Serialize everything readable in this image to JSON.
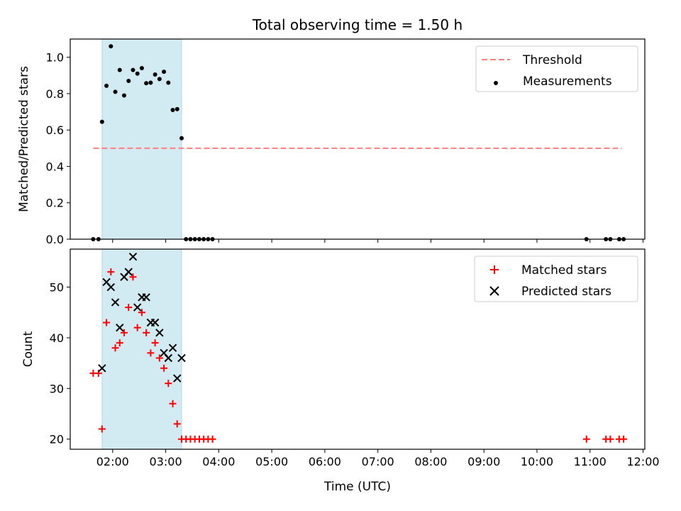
{
  "chart_data": [
    {
      "type": "scatter",
      "title": "Total observing time = 1.50 h",
      "xlabel": "",
      "ylabel": "Matched/Predicted stars",
      "xlim": [
        "01:12",
        "12:02"
      ],
      "ylim": [
        0,
        1.1
      ],
      "x_ticks": [
        "02:00",
        "03:00",
        "04:00",
        "05:00",
        "06:00",
        "07:00",
        "08:00",
        "09:00",
        "10:00",
        "11:00",
        "12:00"
      ],
      "y_ticks": [
        "0.0",
        "0.2",
        "0.4",
        "0.6",
        "0.8",
        "1.0"
      ],
      "shaded_region": {
        "x": [
          "01:48",
          "03:18"
        ],
        "color": "#add8e6"
      },
      "grid": false,
      "legend": {
        "position": "top-right",
        "entries": [
          "Threshold",
          "Measurements"
        ]
      },
      "series": [
        {
          "name": "Threshold",
          "style": "dashed-line",
          "color": "#ff7f7f",
          "points": [
            [
              "01:38",
              0.5
            ],
            [
              "11:36",
              0.5
            ]
          ]
        },
        {
          "name": "Measurements",
          "style": "dot",
          "color": "#000000",
          "points": [
            [
              "01:38",
              0.0
            ],
            [
              "01:44",
              0.0
            ],
            [
              "01:48",
              0.645
            ],
            [
              "01:53",
              0.843
            ],
            [
              "01:58",
              1.06
            ],
            [
              "02:03",
              0.81
            ],
            [
              "02:08",
              0.93
            ],
            [
              "02:13",
              0.79
            ],
            [
              "02:18",
              0.87
            ],
            [
              "02:23",
              0.93
            ],
            [
              "02:28",
              0.91
            ],
            [
              "02:33",
              0.94
            ],
            [
              "02:38",
              0.857
            ],
            [
              "02:43",
              0.86
            ],
            [
              "02:48",
              0.905
            ],
            [
              "02:53",
              0.88
            ],
            [
              "02:58",
              0.92
            ],
            [
              "03:03",
              0.86
            ],
            [
              "03:08",
              0.71
            ],
            [
              "03:13",
              0.715
            ],
            [
              "03:18",
              0.555
            ],
            [
              "03:23",
              0.0
            ],
            [
              "03:28",
              0.0
            ],
            [
              "03:33",
              0.0
            ],
            [
              "03:38",
              0.0
            ],
            [
              "03:43",
              0.0
            ],
            [
              "03:48",
              0.0
            ],
            [
              "03:53",
              0.0
            ],
            [
              "10:56",
              0.0
            ],
            [
              "11:18",
              0.0
            ],
            [
              "11:23",
              0.0
            ],
            [
              "11:33",
              0.0
            ],
            [
              "11:38",
              0.0
            ]
          ]
        }
      ]
    },
    {
      "type": "scatter",
      "title": "",
      "xlabel": "Time (UTC)",
      "ylabel": "Count",
      "xlim": [
        "01:12",
        "12:02"
      ],
      "ylim": [
        18,
        57.5
      ],
      "x_ticks": [
        "02:00",
        "03:00",
        "04:00",
        "05:00",
        "06:00",
        "07:00",
        "08:00",
        "09:00",
        "10:00",
        "11:00",
        "12:00"
      ],
      "y_ticks": [
        "20",
        "30",
        "40",
        "50"
      ],
      "shaded_region": {
        "x": [
          "01:48",
          "03:18"
        ],
        "color": "#add8e6"
      },
      "grid": false,
      "legend": {
        "position": "top-right",
        "entries": [
          "Matched stars",
          "Predicted stars"
        ]
      },
      "series": [
        {
          "name": "Matched stars",
          "marker": "plus",
          "color": "#ff0000",
          "points": [
            [
              "01:38",
              33
            ],
            [
              "01:44",
              33
            ],
            [
              "01:48",
              22
            ],
            [
              "01:53",
              43
            ],
            [
              "01:58",
              53
            ],
            [
              "02:03",
              38
            ],
            [
              "02:08",
              39
            ],
            [
              "02:13",
              41
            ],
            [
              "02:18",
              46
            ],
            [
              "02:23",
              52
            ],
            [
              "02:28",
              42
            ],
            [
              "02:33",
              45
            ],
            [
              "02:38",
              41
            ],
            [
              "02:43",
              37
            ],
            [
              "02:48",
              39
            ],
            [
              "02:53",
              36
            ],
            [
              "02:58",
              34
            ],
            [
              "03:03",
              31
            ],
            [
              "03:08",
              27
            ],
            [
              "03:13",
              23
            ],
            [
              "03:18",
              20
            ],
            [
              "03:23",
              20
            ],
            [
              "03:28",
              20
            ],
            [
              "03:33",
              20
            ],
            [
              "03:38",
              20
            ],
            [
              "03:43",
              20
            ],
            [
              "03:48",
              20
            ],
            [
              "03:53",
              20
            ],
            [
              "10:56",
              20
            ],
            [
              "11:18",
              20
            ],
            [
              "11:23",
              20
            ],
            [
              "11:33",
              20
            ],
            [
              "11:38",
              20
            ]
          ]
        },
        {
          "name": "Predicted stars",
          "marker": "x",
          "color": "#000000",
          "points": [
            [
              "01:48",
              34
            ],
            [
              "01:53",
              51
            ],
            [
              "01:58",
              50
            ],
            [
              "02:03",
              47
            ],
            [
              "02:08",
              42
            ],
            [
              "02:13",
              52
            ],
            [
              "02:18",
              53
            ],
            [
              "02:23",
              56
            ],
            [
              "02:28",
              46
            ],
            [
              "02:33",
              48
            ],
            [
              "02:38",
              48
            ],
            [
              "02:43",
              43
            ],
            [
              "02:48",
              43
            ],
            [
              "02:53",
              41
            ],
            [
              "02:58",
              37
            ],
            [
              "03:03",
              36
            ],
            [
              "03:08",
              38
            ],
            [
              "03:13",
              32
            ],
            [
              "03:18",
              36
            ]
          ]
        }
      ]
    }
  ]
}
